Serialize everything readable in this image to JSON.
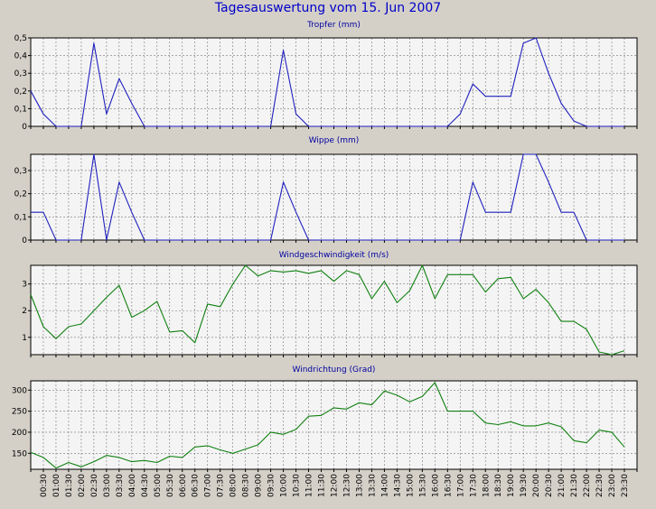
{
  "title": "Tagesauswertung vom 15. Jun 2007",
  "colors": {
    "background": "#d4d0c8",
    "plot_background": "#f4f4f4",
    "grid": "#777777",
    "precip_line": "#2020c0",
    "wind_line": "#108010",
    "title_text": "#0000c8"
  },
  "x_tick_labels": [
    "00:30",
    "01:00",
    "01:30",
    "02:00",
    "02:30",
    "03:00",
    "03:30",
    "04:00",
    "04:30",
    "05:00",
    "05:30",
    "06:00",
    "06:30",
    "07:00",
    "07:30",
    "08:00",
    "08:30",
    "09:00",
    "09:30",
    "10:00",
    "10:30",
    "11:00",
    "11:30",
    "12:00",
    "12:30",
    "13:00",
    "13:30",
    "14:00",
    "14:30",
    "15:00",
    "15:30",
    "16:00",
    "16:30",
    "17:00",
    "17:30",
    "18:00",
    "18:30",
    "19:00",
    "19:30",
    "20:00",
    "20:30",
    "21:00",
    "21:30",
    "22:00",
    "22:30",
    "23:00",
    "23:30"
  ],
  "chart_data": [
    {
      "type": "line",
      "title": "Tropfer (mm)",
      "ylim": [
        0,
        0.5
      ],
      "yticks": [
        0,
        0.1,
        0.2,
        0.3,
        0.4,
        0.5
      ],
      "ytick_labels": [
        "0",
        "0,1",
        "0,2",
        "0,3",
        "0,4",
        "0,5"
      ],
      "color": "#2020c0",
      "values": [
        0.2,
        0.07,
        0.0,
        0.0,
        0.0,
        0.47,
        0.07,
        0.27,
        0.13,
        0.0,
        0.0,
        0.0,
        0.0,
        0.0,
        0.0,
        0.0,
        0.0,
        0.0,
        0.0,
        0.0,
        0.43,
        0.07,
        0.0,
        0.0,
        0.0,
        0.0,
        0.0,
        0.0,
        0.0,
        0.0,
        0.0,
        0.0,
        0.0,
        0.0,
        0.07,
        0.24,
        0.17,
        0.17,
        0.17,
        0.47,
        0.5,
        0.3,
        0.13,
        0.03,
        0.0,
        0.0,
        0.0,
        0.0
      ]
    },
    {
      "type": "line",
      "title": "Wippe (mm)",
      "ylim": [
        0,
        0.37
      ],
      "yticks": [
        0,
        0.1,
        0.2,
        0.3
      ],
      "ytick_labels": [
        "0",
        "0,1",
        "0,2",
        "0,3"
      ],
      "color": "#2020c0",
      "values": [
        0.12,
        0.12,
        0.0,
        0.0,
        0.0,
        0.37,
        0.0,
        0.25,
        0.12,
        0.0,
        0.0,
        0.0,
        0.0,
        0.0,
        0.0,
        0.0,
        0.0,
        0.0,
        0.0,
        0.0,
        0.25,
        0.12,
        0.0,
        0.0,
        0.0,
        0.0,
        0.0,
        0.0,
        0.0,
        0.0,
        0.0,
        0.0,
        0.0,
        0.0,
        0.0,
        0.25,
        0.12,
        0.12,
        0.12,
        0.37,
        0.37,
        0.25,
        0.12,
        0.12,
        0.0,
        0.0,
        0.0,
        0.0
      ]
    },
    {
      "type": "line",
      "title": "Windgeschwindigkeit (m/s)",
      "ylim": [
        0.35,
        3.7
      ],
      "yticks": [
        1,
        2,
        3
      ],
      "ytick_labels": [
        "1",
        "2",
        "3"
      ],
      "color": "#108010",
      "values": [
        2.6,
        1.4,
        0.95,
        1.4,
        1.5,
        2.0,
        2.5,
        2.95,
        1.75,
        2.0,
        2.35,
        1.2,
        1.25,
        0.8,
        2.25,
        2.15,
        3.0,
        3.7,
        3.3,
        3.5,
        3.45,
        3.5,
        3.4,
        3.5,
        3.1,
        3.5,
        3.35,
        2.45,
        3.1,
        2.3,
        2.75,
        3.7,
        2.45,
        3.35,
        3.35,
        3.35,
        2.7,
        3.2,
        3.25,
        2.45,
        2.8,
        2.3,
        1.6,
        1.6,
        1.3,
        0.45,
        0.35,
        0.5
      ]
    },
    {
      "type": "line",
      "title": "Windrichtung (Grad)",
      "ylim": [
        112,
        322
      ],
      "yticks": [
        150,
        200,
        250,
        300
      ],
      "ytick_labels": [
        "150",
        "200",
        "250",
        "300"
      ],
      "color": "#108010",
      "values": [
        152,
        140,
        115,
        128,
        118,
        130,
        145,
        140,
        130,
        133,
        128,
        143,
        140,
        165,
        168,
        158,
        150,
        160,
        170,
        200,
        195,
        207,
        238,
        240,
        258,
        255,
        270,
        265,
        298,
        288,
        272,
        285,
        318,
        250,
        250,
        250,
        222,
        218,
        225,
        215,
        215,
        222,
        213,
        180,
        175,
        205,
        200,
        165
      ]
    }
  ]
}
